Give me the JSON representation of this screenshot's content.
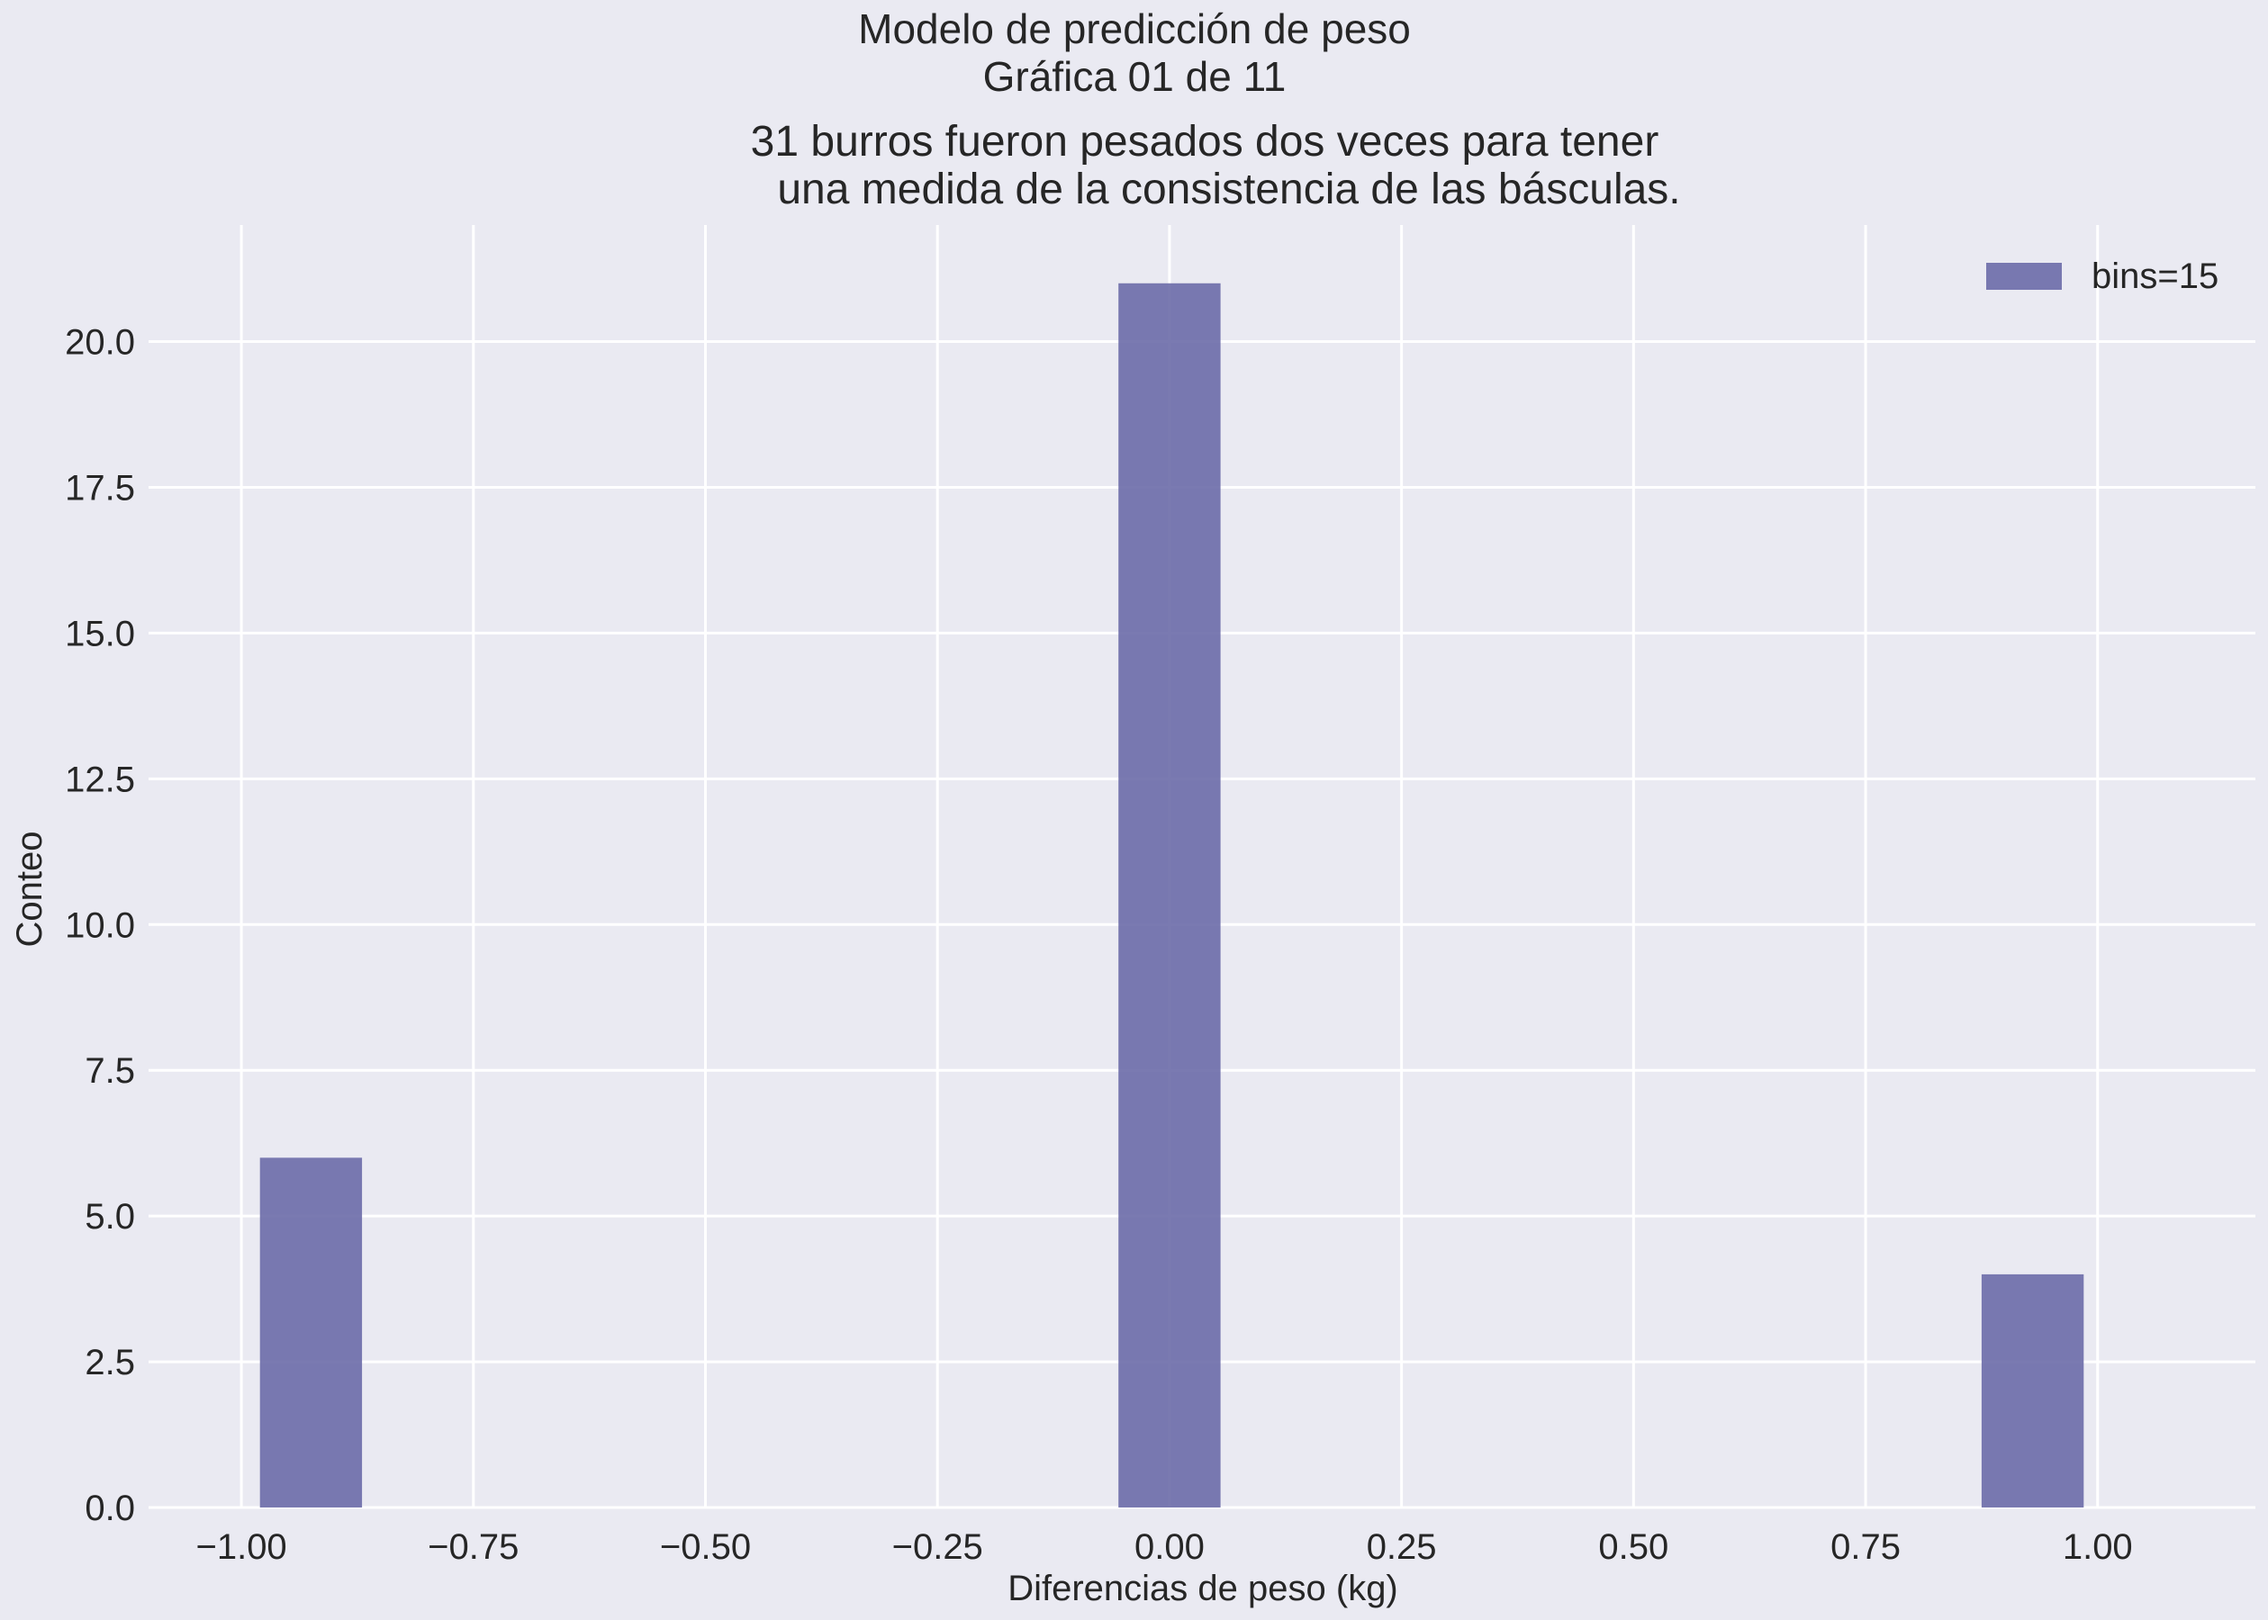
{
  "figure": {
    "suptitle_line1": "Modelo de predicción de peso",
    "suptitle_line2": "Gráfica 01 de 11",
    "title_line1": "31 burros fueron pesados dos veces para tener",
    "title_line2": "una medida de la consistencia de las básculas.",
    "background_color": "#eaeaf2",
    "plot_background_color": "#eaeaf2",
    "grid_color": "#ffffff",
    "bar_color": "#6b6ca8"
  },
  "chart_data": {
    "type": "bar",
    "title": "31 burros fueron pesados dos veces para tener una medida de la consistencia de las básculas.",
    "xlabel": "Diferencias de peso (kg)",
    "ylabel": "Conteo",
    "xlim": [
      -1.1,
      1.17
    ],
    "ylim": [
      0,
      22
    ],
    "grid": true,
    "legend": {
      "position": "top-right",
      "entries": [
        "bins=15"
      ]
    },
    "bins": 15,
    "bin_edges": [
      -1.0,
      -0.8667,
      -0.7333,
      -0.6,
      -0.4667,
      -0.3333,
      -0.2,
      -0.0667,
      0.0667,
      0.2,
      0.3333,
      0.4667,
      0.6,
      0.7333,
      0.8667,
      1.0
    ],
    "bars": [
      {
        "x_start": -0.98,
        "x_end": -0.87,
        "value": 6
      },
      {
        "x_start": -0.055,
        "x_end": 0.055,
        "value": 21
      },
      {
        "x_start": 0.875,
        "x_end": 0.985,
        "value": 4
      }
    ],
    "series": [
      {
        "name": "bins=15",
        "values": [
          6,
          21,
          4
        ]
      }
    ],
    "x_ticks": [
      -1.0,
      -0.75,
      -0.5,
      -0.25,
      0.0,
      0.25,
      0.5,
      0.75,
      1.0
    ],
    "x_tick_labels": [
      "−1.00",
      "−0.75",
      "−0.50",
      "−0.25",
      "0.00",
      "0.25",
      "0.50",
      "0.75",
      "1.00"
    ],
    "y_ticks": [
      0,
      2.5,
      5,
      7.5,
      10,
      12.5,
      15,
      17.5,
      20
    ],
    "y_tick_labels": [
      "0.0",
      "2.5",
      "5.0",
      "7.5",
      "10.0",
      "12.5",
      "15.0",
      "17.5",
      "20.0"
    ]
  }
}
